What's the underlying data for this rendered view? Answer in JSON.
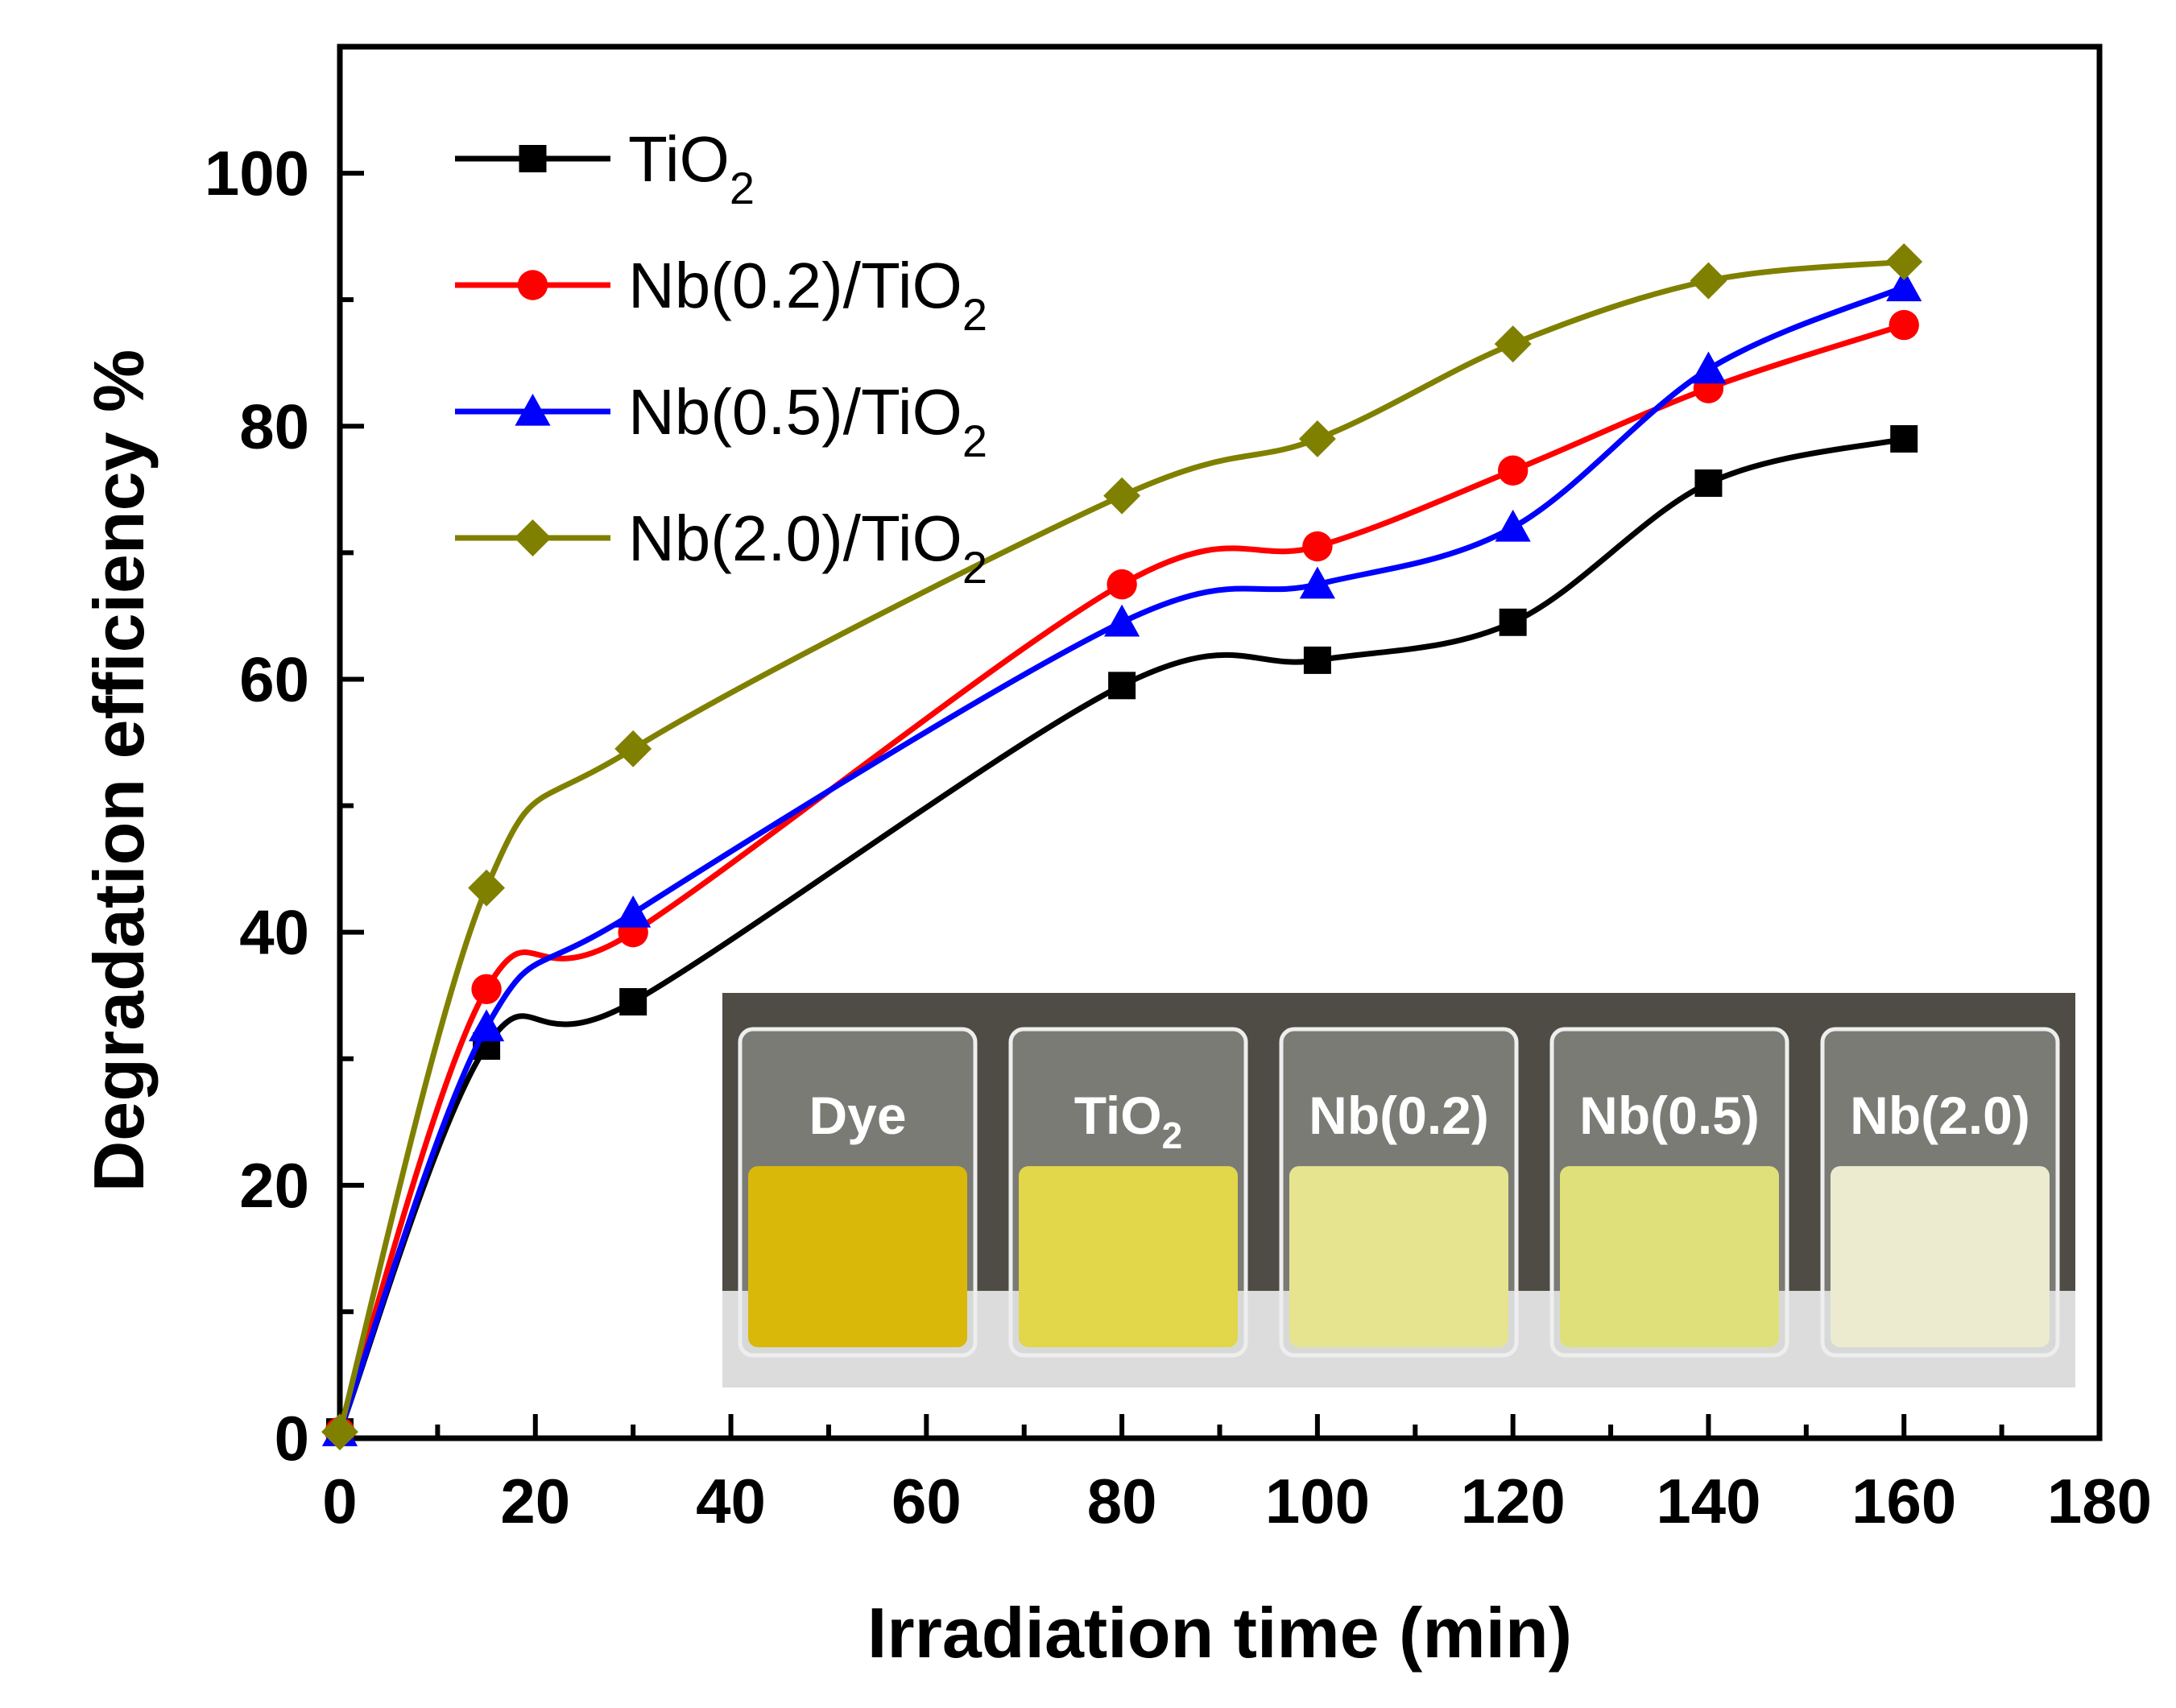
{
  "chart_data": {
    "type": "line",
    "xlabel": "Irradiation time (min)",
    "ylabel": "Degradation efficiency %",
    "xlim": [
      0,
      180
    ],
    "ylim": [
      0,
      110
    ],
    "xticks": [
      "0",
      "20",
      "40",
      "60",
      "80",
      "100",
      "120",
      "140",
      "160",
      "180"
    ],
    "yticks": [
      "0",
      "20",
      "40",
      "60",
      "80",
      "100"
    ],
    "x": [
      0,
      15,
      30,
      80,
      100,
      120,
      140,
      160
    ],
    "series": [
      {
        "name": "TiO",
        "name_sub": "2",
        "color": "#000000",
        "marker": "square",
        "values": [
          0.5,
          31,
          34.5,
          59.5,
          61.5,
          64.5,
          75.5,
          79
        ]
      },
      {
        "name": "Nb(0.2)/TiO",
        "name_sub": "2",
        "color": "#ff0000",
        "marker": "circle",
        "values": [
          0.5,
          35.5,
          40,
          67.5,
          70.5,
          76.5,
          83,
          88
        ]
      },
      {
        "name": "Nb(0.5)/TiO",
        "name_sub": "2",
        "color": "#0000ff",
        "marker": "triangle",
        "values": [
          0.5,
          32.5,
          41.5,
          64.5,
          67.5,
          72,
          84.5,
          91
        ]
      },
      {
        "name": "Nb(2.0)/TiO",
        "name_sub": "2",
        "color": "#808000",
        "marker": "diamond",
        "values": [
          0.5,
          43.5,
          54.5,
          74.5,
          79,
          86.5,
          91.5,
          93
        ]
      }
    ],
    "legend_position": "top-left",
    "grid": false
  },
  "inset": {
    "type": "photo",
    "labels": [
      {
        "text": "Dye",
        "sub": ""
      },
      {
        "text": "TiO",
        "sub": "2"
      },
      {
        "text": "Nb(0.2)",
        "sub": ""
      },
      {
        "text": "Nb(0.5)",
        "sub": ""
      },
      {
        "text": "Nb(2.0)",
        "sub": ""
      }
    ],
    "liquid_colors": [
      "#d9b80a",
      "#e2d64a",
      "#e6e48f",
      "#e0e07a",
      "#ecebd0"
    ]
  }
}
